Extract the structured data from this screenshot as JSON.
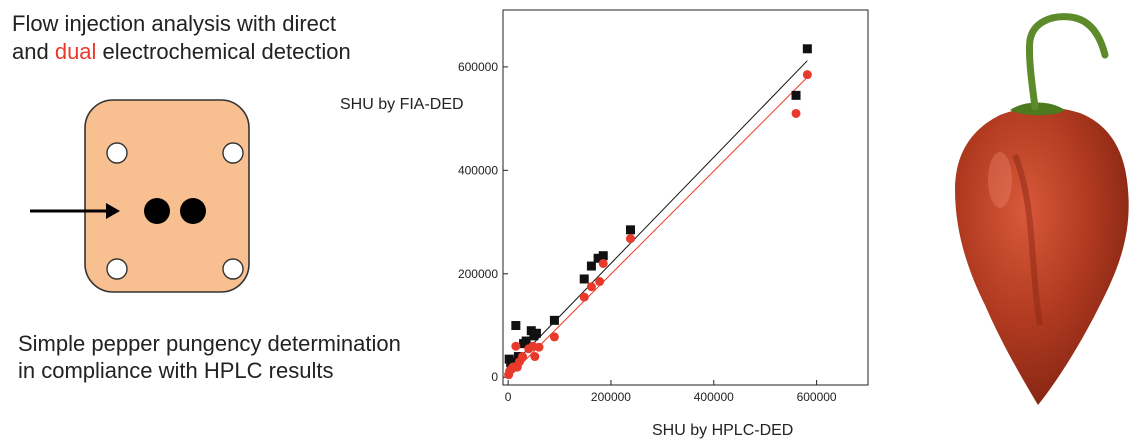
{
  "headline": {
    "line1": "Flow injection analysis with direct",
    "line2_pre": "and ",
    "line2_accent": "dual",
    "line2_post": " electrochemical detection"
  },
  "caption": {
    "line1": "Simple pepper pungency determination",
    "line2": "in compliance with HPLC results"
  },
  "colors": {
    "accent": "#e8392b",
    "cell_fill": "#f8c090",
    "series_black": "#111111",
    "series_red": "#e8392b"
  },
  "icons": {
    "cell": "flow-cell-icon",
    "arrow": "flow-arrow-icon",
    "pepper": "chili-pepper-image"
  },
  "chart_data": {
    "type": "scatter",
    "xlabel": "SHU by HPLC-DED",
    "ylabel": "SHU by FIA-DED",
    "xlim": [
      -10000,
      700000
    ],
    "ylim": [
      -15000,
      710000
    ],
    "x_ticks": [
      "0",
      "200000",
      "400000",
      "600000"
    ],
    "y_ticks": [
      "0",
      "200000",
      "400000",
      "600000"
    ],
    "series": [
      {
        "marker": "square",
        "color": "#111111",
        "points": [
          [
            2000,
            35000
          ],
          [
            5000,
            28000
          ],
          [
            8000,
            30000
          ],
          [
            12000,
            20000
          ],
          [
            15000,
            100000
          ],
          [
            20000,
            40000
          ],
          [
            30000,
            65000
          ],
          [
            35000,
            70000
          ],
          [
            45000,
            90000
          ],
          [
            50000,
            80000
          ],
          [
            55000,
            85000
          ],
          [
            90000,
            110000
          ],
          [
            148000,
            190000
          ],
          [
            162000,
            215000
          ],
          [
            175000,
            230000
          ],
          [
            185000,
            235000
          ],
          [
            238000,
            285000
          ],
          [
            560000,
            545000
          ],
          [
            582000,
            635000
          ]
        ],
        "fit": [
          [
            0,
            15000
          ],
          [
            582000,
            612000
          ]
        ]
      },
      {
        "marker": "circle",
        "color": "#e8392b",
        "points": [
          [
            1000,
            5000
          ],
          [
            3000,
            12000
          ],
          [
            6000,
            15000
          ],
          [
            8000,
            18000
          ],
          [
            10000,
            20000
          ],
          [
            15000,
            60000
          ],
          [
            18000,
            20000
          ],
          [
            22000,
            30000
          ],
          [
            28000,
            40000
          ],
          [
            40000,
            55000
          ],
          [
            48000,
            60000
          ],
          [
            52000,
            40000
          ],
          [
            60000,
            58000
          ],
          [
            90000,
            78000
          ],
          [
            148000,
            155000
          ],
          [
            162000,
            175000
          ],
          [
            178000,
            185000
          ],
          [
            185000,
            220000
          ],
          [
            238000,
            268000
          ],
          [
            560000,
            510000
          ],
          [
            582000,
            585000
          ]
        ],
        "fit": [
          [
            0,
            0
          ],
          [
            582000,
            580000
          ]
        ]
      }
    ]
  }
}
